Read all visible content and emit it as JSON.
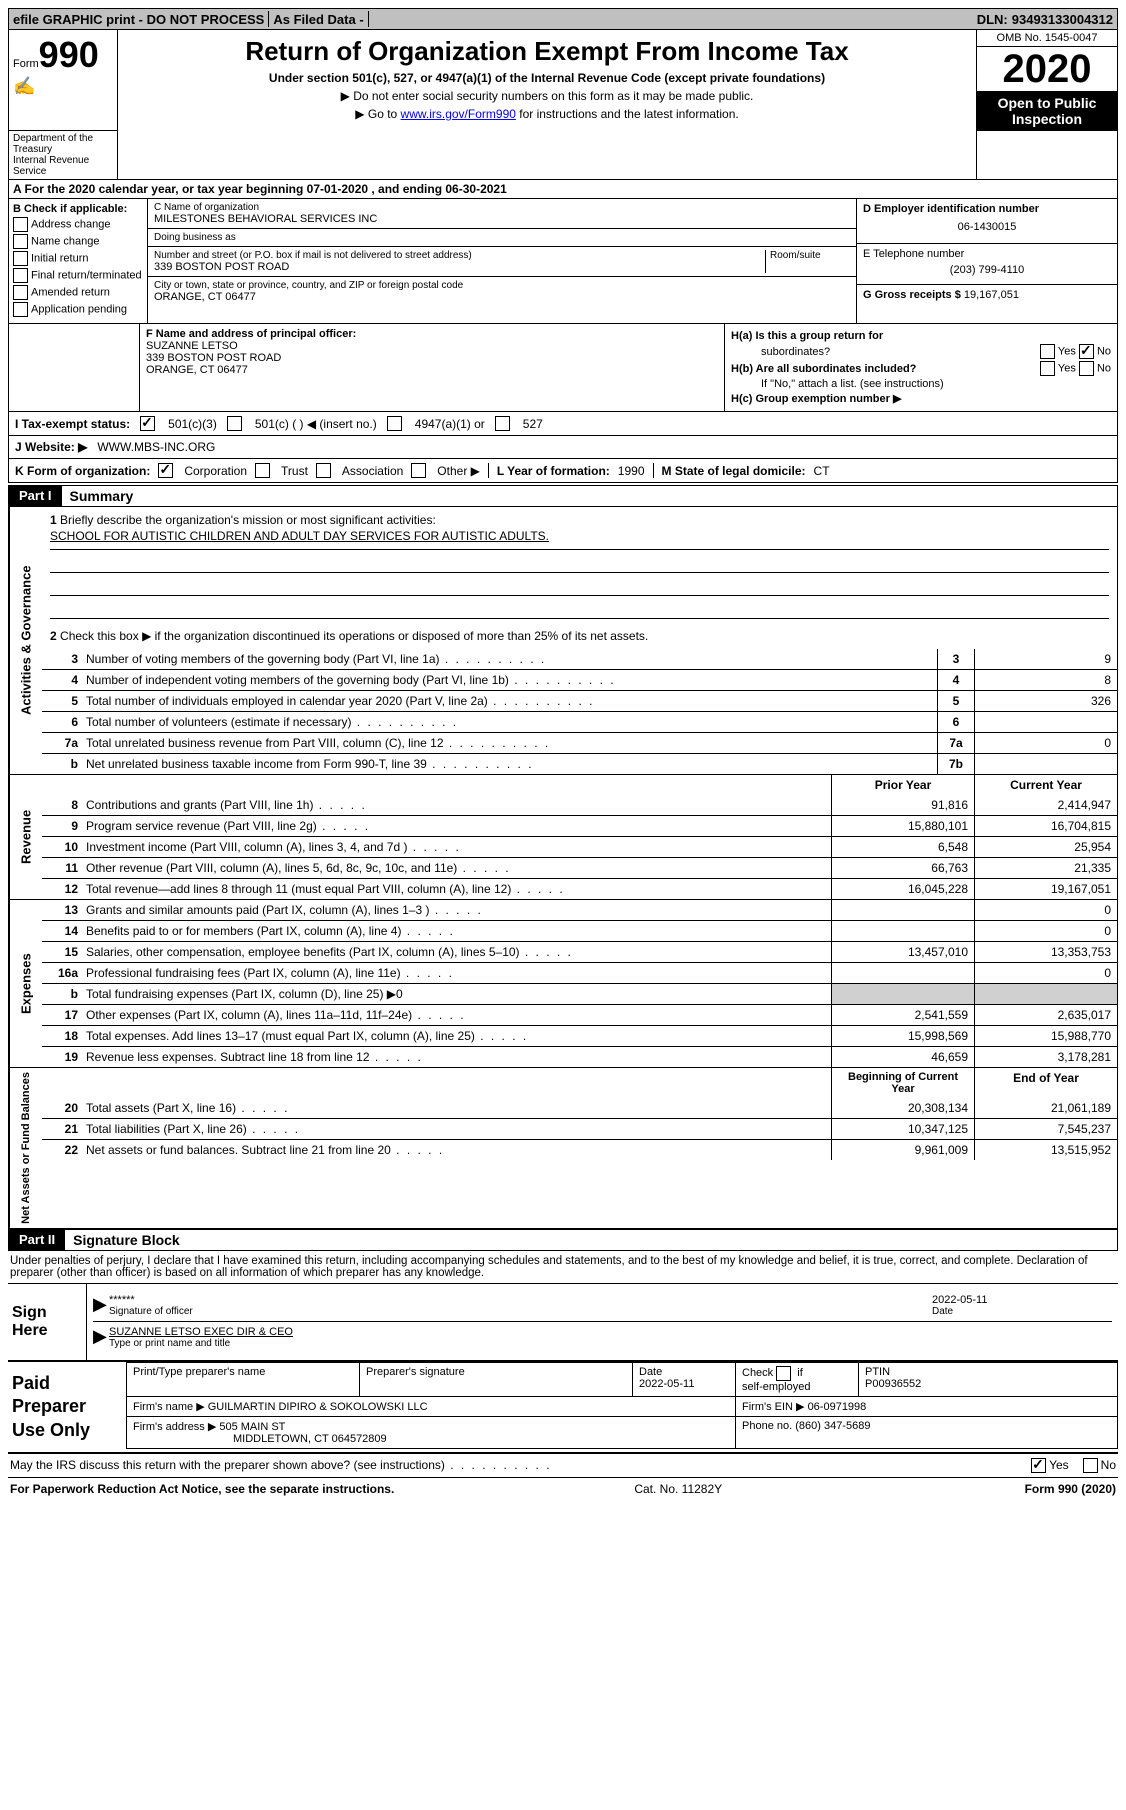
{
  "topbar": {
    "efile": "efile GRAPHIC print - DO NOT PROCESS",
    "asfiled": "As Filed Data -",
    "dln_label": "DLN:",
    "dln": "93493133004312"
  },
  "form": {
    "form_label": "Form",
    "form_num": "990",
    "dept1": "Department of the Treasury",
    "dept2": "Internal Revenue Service",
    "title": "Return of Organization Exempt From Income Tax",
    "subtitle": "Under section 501(c), 527, or 4947(a)(1) of the Internal Revenue Code (except private foundations)",
    "note1": "▶ Do not enter social security numbers on this form as it may be made public.",
    "note2_pre": "▶ Go to ",
    "note2_link": "www.irs.gov/Form990",
    "note2_post": " for instructions and the latest information.",
    "omb": "OMB No. 1545-0047",
    "year": "2020",
    "open": "Open to Public Inspection"
  },
  "row_a": "A   For the 2020 calendar year, or tax year beginning 07-01-2020   , and ending 06-30-2021",
  "col_b": {
    "title": "B Check if applicable:",
    "items": [
      "Address change",
      "Name change",
      "Initial return",
      "Final return/terminated",
      "Amended return",
      "Application pending"
    ]
  },
  "col_c": {
    "name_label": "C Name of organization",
    "name": "MILESTONES BEHAVIORAL SERVICES INC",
    "dba_label": "Doing business as",
    "dba": "",
    "street_label": "Number and street (or P.O. box if mail is not delivered to street address)",
    "street": "339 BOSTON POST ROAD",
    "room_label": "Room/suite",
    "city_label": "City or town, state or province, country, and ZIP or foreign postal code",
    "city": "ORANGE, CT  06477"
  },
  "col_d": {
    "ein_label": "D Employer identification number",
    "ein": "06-1430015",
    "phone_label": "E Telephone number",
    "phone": "(203) 799-4110",
    "gross_label": "G Gross receipts $",
    "gross": "19,167,051"
  },
  "f": {
    "label": "F  Name and address of principal officer:",
    "name": "SUZANNE LETSO",
    "addr1": "339 BOSTON POST ROAD",
    "addr2": "ORANGE, CT  06477"
  },
  "h": {
    "ha_label": "H(a)  Is this a group return for",
    "ha_label2": "subordinates?",
    "hb_label": "H(b)  Are all subordinates included?",
    "hb_note": "If \"No,\" attach a list. (see instructions)",
    "hc_label": "H(c)  Group exemption number ▶",
    "yes": "Yes",
    "no": "No"
  },
  "i": {
    "label": "I   Tax-exempt status:",
    "opts": [
      "501(c)(3)",
      "501(c) (   ) ◀ (insert no.)",
      "4947(a)(1) or",
      "527"
    ]
  },
  "j": {
    "label": "J   Website: ▶",
    "value": "WWW.MBS-INC.ORG"
  },
  "k": {
    "label": "K Form of organization:",
    "opts": [
      "Corporation",
      "Trust",
      "Association",
      "Other ▶"
    ]
  },
  "l": {
    "label": "L Year of formation:",
    "value": "1990"
  },
  "m": {
    "label": "M State of legal domicile:",
    "value": "CT"
  },
  "parts": {
    "p1": "Part I",
    "p1_label": "Summary",
    "p2": "Part II",
    "p2_label": "Signature Block"
  },
  "sidebars": {
    "ag": "Activities & Governance",
    "rev": "Revenue",
    "exp": "Expenses",
    "na": "Net Assets or Fund Balances"
  },
  "summary": {
    "q1": "Briefly describe the organization's mission or most significant activities:",
    "mission": "SCHOOL FOR AUTISTIC CHILDREN AND ADULT DAY SERVICES FOR AUTISTIC ADULTS.",
    "q2": "Check this box ▶      if the organization discontinued its operations or disposed of more than 25% of its net assets.",
    "rows": [
      {
        "n": "3",
        "d": "Number of voting members of the governing body (Part VI, line 1a)",
        "box": "3",
        "v": "9"
      },
      {
        "n": "4",
        "d": "Number of independent voting members of the governing body (Part VI, line 1b)",
        "box": "4",
        "v": "8"
      },
      {
        "n": "5",
        "d": "Total number of individuals employed in calendar year 2020 (Part V, line 2a)",
        "box": "5",
        "v": "326"
      },
      {
        "n": "6",
        "d": "Total number of volunteers (estimate if necessary)",
        "box": "6",
        "v": ""
      },
      {
        "n": "7a",
        "d": "Total unrelated business revenue from Part VIII, column (C), line 12",
        "box": "7a",
        "v": "0"
      },
      {
        "n": "b",
        "d": "Net unrelated business taxable income from Form 990-T, line 39",
        "box": "7b",
        "v": ""
      }
    ],
    "hdr_prior": "Prior Year",
    "hdr_current": "Current Year",
    "rev": [
      {
        "n": "8",
        "d": "Contributions and grants (Part VIII, line 1h)",
        "p": "91,816",
        "c": "2,414,947"
      },
      {
        "n": "9",
        "d": "Program service revenue (Part VIII, line 2g)",
        "p": "15,880,101",
        "c": "16,704,815"
      },
      {
        "n": "10",
        "d": "Investment income (Part VIII, column (A), lines 3, 4, and 7d )",
        "p": "6,548",
        "c": "25,954"
      },
      {
        "n": "11",
        "d": "Other revenue (Part VIII, column (A), lines 5, 6d, 8c, 9c, 10c, and 11e)",
        "p": "66,763",
        "c": "21,335"
      },
      {
        "n": "12",
        "d": "Total revenue—add lines 8 through 11 (must equal Part VIII, column (A), line 12)",
        "p": "16,045,228",
        "c": "19,167,051"
      }
    ],
    "exp": [
      {
        "n": "13",
        "d": "Grants and similar amounts paid (Part IX, column (A), lines 1–3 )",
        "p": "",
        "c": "0"
      },
      {
        "n": "14",
        "d": "Benefits paid to or for members (Part IX, column (A), line 4)",
        "p": "",
        "c": "0"
      },
      {
        "n": "15",
        "d": "Salaries, other compensation, employee benefits (Part IX, column (A), lines 5–10)",
        "p": "13,457,010",
        "c": "13,353,753"
      },
      {
        "n": "16a",
        "d": "Professional fundraising fees (Part IX, column (A), line 11e)",
        "p": "",
        "c": "0"
      },
      {
        "n": "b",
        "d": "Total fundraising expenses (Part IX, column (D), line 25) ▶0",
        "p": "grey",
        "c": "grey"
      },
      {
        "n": "17",
        "d": "Other expenses (Part IX, column (A), lines 11a–11d, 11f–24e)",
        "p": "2,541,559",
        "c": "2,635,017"
      },
      {
        "n": "18",
        "d": "Total expenses. Add lines 13–17 (must equal Part IX, column (A), line 25)",
        "p": "15,998,569",
        "c": "15,988,770"
      },
      {
        "n": "19",
        "d": "Revenue less expenses. Subtract line 18 from line 12",
        "p": "46,659",
        "c": "3,178,281"
      }
    ],
    "hdr_boy": "Beginning of Current Year",
    "hdr_eoy": "End of Year",
    "na": [
      {
        "n": "20",
        "d": "Total assets (Part X, line 16)",
        "p": "20,308,134",
        "c": "21,061,189"
      },
      {
        "n": "21",
        "d": "Total liabilities (Part X, line 26)",
        "p": "10,347,125",
        "c": "7,545,237"
      },
      {
        "n": "22",
        "d": "Net assets or fund balances. Subtract line 21 from line 20",
        "p": "9,961,009",
        "c": "13,515,952"
      }
    ]
  },
  "sig": {
    "perjury": "Under penalties of perjury, I declare that I have examined this return, including accompanying schedules and statements, and to the best of my knowledge and belief, it is true, correct, and complete. Declaration of preparer (other than officer) is based on all information of which preparer has any knowledge.",
    "sign_here": "Sign Here",
    "stars": "******",
    "sig_label": "Signature of officer",
    "date_label": "Date",
    "date": "2022-05-11",
    "name": "SUZANNE LETSO  EXEC DIR & CEO",
    "name_label": "Type or print name and title"
  },
  "prep": {
    "title": "Paid Preparer Use Only",
    "h1": "Print/Type preparer's name",
    "h2": "Preparer's signature",
    "h3": "Date",
    "h3v": "2022-05-11",
    "h4": "Check       if self-employed",
    "h5": "PTIN",
    "h5v": "P00936552",
    "firm_label": "Firm's name     ▶",
    "firm": "GUILMARTIN DIPIRO & SOKOLOWSKI LLC",
    "ein_label": "Firm's EIN ▶",
    "ein": "06-0971998",
    "addr_label": "Firm's address ▶",
    "addr1": "505 MAIN ST",
    "addr2": "MIDDLETOWN, CT  064572809",
    "phone_label": "Phone no.",
    "phone": "(860) 347-5689"
  },
  "footer": {
    "discuss": "May the IRS discuss this return with the preparer shown above? (see instructions)",
    "yes": "Yes",
    "no": "No",
    "paperwork": "For Paperwork Reduction Act Notice, see the separate instructions.",
    "cat": "Cat. No. 11282Y",
    "form": "Form 990 (2020)"
  }
}
